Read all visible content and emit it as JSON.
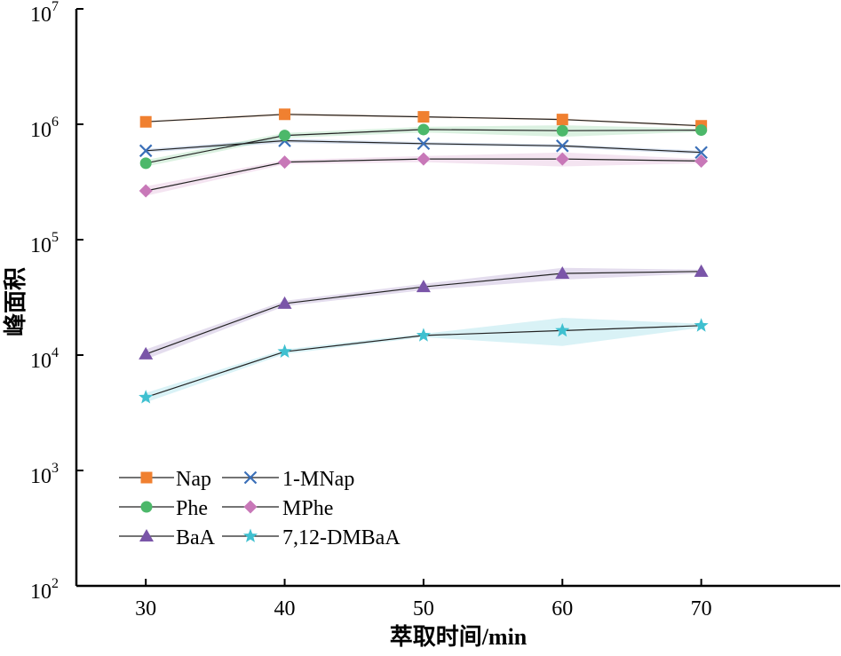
{
  "chart_data": {
    "type": "line",
    "title": "",
    "xlabel": "萃取时间/min",
    "ylabel": "峰面积",
    "x": [
      30,
      40,
      50,
      60,
      70
    ],
    "xlim": [
      25,
      80
    ],
    "ylim": [
      100,
      10000000
    ],
    "yscale": "log",
    "x_ticks": [
      "30",
      "40",
      "50",
      "60",
      "70"
    ],
    "y_ticks": [
      {
        "base": "10",
        "exp": "2",
        "value": 100
      },
      {
        "base": "10",
        "exp": "3",
        "value": 1000
      },
      {
        "base": "10",
        "exp": "4",
        "value": 10000
      },
      {
        "base": "10",
        "exp": "5",
        "value": 100000
      },
      {
        "base": "10",
        "exp": "6",
        "value": 1000000
      },
      {
        "base": "10",
        "exp": "7",
        "value": 10000000
      }
    ],
    "grid": false,
    "legend_position": "bottom-left",
    "series": [
      {
        "name": "Nap",
        "color": "#f08030",
        "marker": "square",
        "values": [
          1050000,
          1220000,
          1160000,
          1100000,
          970000
        ],
        "lower": [
          1030000,
          1190000,
          1140000,
          1080000,
          950000
        ],
        "upper": [
          1070000,
          1250000,
          1180000,
          1120000,
          990000
        ]
      },
      {
        "name": "1-MNap",
        "color": "#3a6fb8",
        "marker": "x",
        "values": [
          590000,
          720000,
          680000,
          650000,
          570000
        ],
        "lower": [
          570000,
          690000,
          660000,
          630000,
          550000
        ],
        "upper": [
          610000,
          750000,
          700000,
          670000,
          590000
        ]
      },
      {
        "name": "Phe",
        "color": "#4cb86a",
        "marker": "circle",
        "values": [
          460000,
          800000,
          900000,
          880000,
          890000
        ],
        "lower": [
          430000,
          760000,
          850000,
          780000,
          860000
        ],
        "upper": [
          490000,
          840000,
          950000,
          980000,
          920000
        ]
      },
      {
        "name": "MPhe",
        "color": "#c878b8",
        "marker": "diamond",
        "values": [
          265000,
          470000,
          500000,
          500000,
          480000
        ],
        "lower": [
          240000,
          450000,
          470000,
          430000,
          460000
        ],
        "upper": [
          290000,
          490000,
          530000,
          570000,
          500000
        ]
      },
      {
        "name": "BaA",
        "color": "#7a55a8",
        "marker": "triangle",
        "values": [
          10200,
          28000,
          39000,
          51000,
          53000
        ],
        "lower": [
          9200,
          26500,
          36500,
          45000,
          51000
        ],
        "upper": [
          11200,
          29500,
          41500,
          57000,
          55000
        ]
      },
      {
        "name": "7,12-DMBaA",
        "color": "#3fc0d0",
        "marker": "star",
        "values": [
          4300,
          10700,
          14800,
          16300,
          18000
        ],
        "lower": [
          3900,
          10200,
          14300,
          12000,
          17300
        ],
        "upper": [
          4700,
          11200,
          15300,
          21000,
          18700
        ]
      }
    ]
  }
}
